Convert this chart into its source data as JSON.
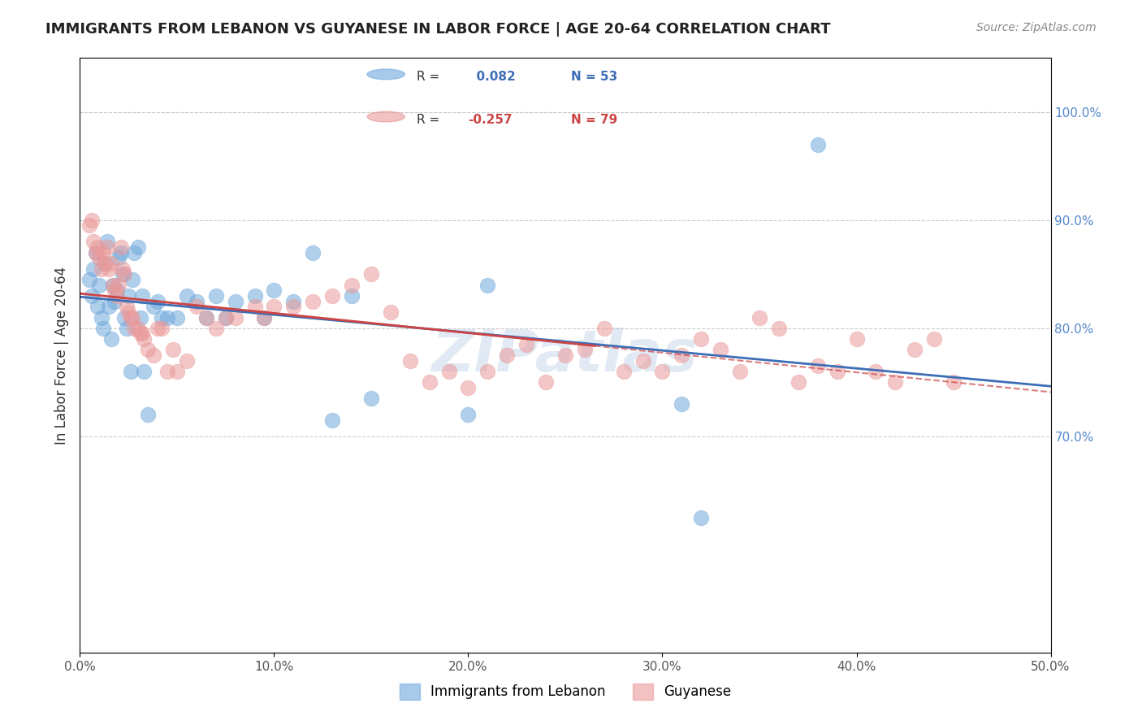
{
  "title": "IMMIGRANTS FROM LEBANON VS GUYANESE IN LABOR FORCE | AGE 20-64 CORRELATION CHART",
  "source": "Source: ZipAtlas.com",
  "xlabel_bottom": "",
  "ylabel": "In Labor Force | Age 20-64",
  "x_min": 0.0,
  "x_max": 0.5,
  "y_min": 0.5,
  "y_max": 1.05,
  "x_ticks": [
    0.0,
    0.1,
    0.2,
    0.3,
    0.4,
    0.5
  ],
  "x_tick_labels": [
    "0.0%",
    "10.0%",
    "20.0%",
    "30.0%",
    "40.0%",
    "50.0%"
  ],
  "y_ticks": [
    0.7,
    0.8,
    0.9,
    1.0
  ],
  "y_tick_labels": [
    "70.0%",
    "80.0%",
    "90.0%",
    "100.0%"
  ],
  "watermark": "ZIPatlas",
  "legend1_label": "Immigrants from Lebanon",
  "legend2_label": "Guyanese",
  "R1": 0.082,
  "N1": 53,
  "R2": -0.257,
  "N2": 79,
  "blue_color": "#6fa8dc",
  "pink_color": "#ea9999",
  "blue_line_color": "#3d6eb5",
  "pink_line_color": "#cc4444",
  "blue_scatter": [
    [
      0.005,
      0.845
    ],
    [
      0.006,
      0.83
    ],
    [
      0.007,
      0.855
    ],
    [
      0.008,
      0.87
    ],
    [
      0.009,
      0.82
    ],
    [
      0.01,
      0.84
    ],
    [
      0.011,
      0.81
    ],
    [
      0.012,
      0.8
    ],
    [
      0.013,
      0.86
    ],
    [
      0.014,
      0.88
    ],
    [
      0.015,
      0.82
    ],
    [
      0.016,
      0.79
    ],
    [
      0.017,
      0.84
    ],
    [
      0.018,
      0.825
    ],
    [
      0.019,
      0.835
    ],
    [
      0.02,
      0.865
    ],
    [
      0.021,
      0.87
    ],
    [
      0.022,
      0.85
    ],
    [
      0.023,
      0.81
    ],
    [
      0.024,
      0.8
    ],
    [
      0.025,
      0.83
    ],
    [
      0.026,
      0.76
    ],
    [
      0.027,
      0.845
    ],
    [
      0.028,
      0.87
    ],
    [
      0.03,
      0.875
    ],
    [
      0.031,
      0.81
    ],
    [
      0.032,
      0.83
    ],
    [
      0.033,
      0.76
    ],
    [
      0.035,
      0.72
    ],
    [
      0.038,
      0.82
    ],
    [
      0.04,
      0.825
    ],
    [
      0.042,
      0.81
    ],
    [
      0.045,
      0.81
    ],
    [
      0.05,
      0.81
    ],
    [
      0.055,
      0.83
    ],
    [
      0.06,
      0.825
    ],
    [
      0.065,
      0.81
    ],
    [
      0.07,
      0.83
    ],
    [
      0.075,
      0.81
    ],
    [
      0.08,
      0.825
    ],
    [
      0.09,
      0.83
    ],
    [
      0.095,
      0.81
    ],
    [
      0.1,
      0.835
    ],
    [
      0.11,
      0.825
    ],
    [
      0.12,
      0.87
    ],
    [
      0.13,
      0.715
    ],
    [
      0.14,
      0.83
    ],
    [
      0.15,
      0.735
    ],
    [
      0.2,
      0.72
    ],
    [
      0.21,
      0.84
    ],
    [
      0.31,
      0.73
    ],
    [
      0.32,
      0.625
    ],
    [
      0.38,
      0.97
    ]
  ],
  "pink_scatter": [
    [
      0.005,
      0.895
    ],
    [
      0.006,
      0.9
    ],
    [
      0.007,
      0.88
    ],
    [
      0.008,
      0.87
    ],
    [
      0.009,
      0.875
    ],
    [
      0.01,
      0.865
    ],
    [
      0.011,
      0.855
    ],
    [
      0.012,
      0.87
    ],
    [
      0.013,
      0.86
    ],
    [
      0.014,
      0.875
    ],
    [
      0.015,
      0.855
    ],
    [
      0.016,
      0.86
    ],
    [
      0.017,
      0.84
    ],
    [
      0.018,
      0.835
    ],
    [
      0.019,
      0.83
    ],
    [
      0.02,
      0.84
    ],
    [
      0.021,
      0.875
    ],
    [
      0.022,
      0.855
    ],
    [
      0.023,
      0.85
    ],
    [
      0.024,
      0.82
    ],
    [
      0.025,
      0.815
    ],
    [
      0.026,
      0.81
    ],
    [
      0.027,
      0.81
    ],
    [
      0.028,
      0.8
    ],
    [
      0.03,
      0.8
    ],
    [
      0.031,
      0.795
    ],
    [
      0.032,
      0.795
    ],
    [
      0.033,
      0.79
    ],
    [
      0.035,
      0.78
    ],
    [
      0.038,
      0.775
    ],
    [
      0.04,
      0.8
    ],
    [
      0.042,
      0.8
    ],
    [
      0.045,
      0.76
    ],
    [
      0.048,
      0.78
    ],
    [
      0.05,
      0.76
    ],
    [
      0.055,
      0.77
    ],
    [
      0.06,
      0.82
    ],
    [
      0.065,
      0.81
    ],
    [
      0.07,
      0.8
    ],
    [
      0.075,
      0.81
    ],
    [
      0.08,
      0.81
    ],
    [
      0.09,
      0.82
    ],
    [
      0.095,
      0.81
    ],
    [
      0.1,
      0.82
    ],
    [
      0.11,
      0.82
    ],
    [
      0.12,
      0.825
    ],
    [
      0.13,
      0.83
    ],
    [
      0.14,
      0.84
    ],
    [
      0.15,
      0.85
    ],
    [
      0.16,
      0.815
    ],
    [
      0.17,
      0.77
    ],
    [
      0.18,
      0.75
    ],
    [
      0.19,
      0.76
    ],
    [
      0.2,
      0.745
    ],
    [
      0.21,
      0.76
    ],
    [
      0.22,
      0.775
    ],
    [
      0.23,
      0.785
    ],
    [
      0.24,
      0.75
    ],
    [
      0.25,
      0.775
    ],
    [
      0.26,
      0.78
    ],
    [
      0.27,
      0.8
    ],
    [
      0.28,
      0.76
    ],
    [
      0.29,
      0.77
    ],
    [
      0.3,
      0.76
    ],
    [
      0.31,
      0.775
    ],
    [
      0.32,
      0.79
    ],
    [
      0.33,
      0.78
    ],
    [
      0.34,
      0.76
    ],
    [
      0.35,
      0.81
    ],
    [
      0.36,
      0.8
    ],
    [
      0.37,
      0.75
    ],
    [
      0.38,
      0.765
    ],
    [
      0.39,
      0.76
    ],
    [
      0.4,
      0.79
    ],
    [
      0.41,
      0.76
    ],
    [
      0.42,
      0.75
    ],
    [
      0.43,
      0.78
    ],
    [
      0.44,
      0.79
    ],
    [
      0.45,
      0.75
    ]
  ]
}
